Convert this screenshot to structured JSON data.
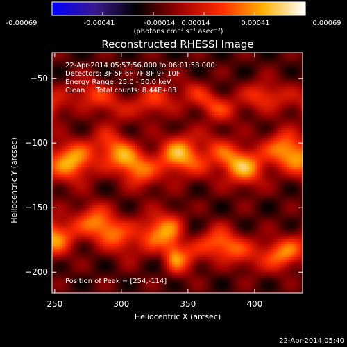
{
  "chart_data": {
    "type": "heatmap",
    "title": "Reconstructed RHESSI Image",
    "xlabel": "Heliocentric X (arcsec)",
    "ylabel": "Heliocentric Y (arcsec)",
    "xlim": [
      248,
      436
    ],
    "ylim": [
      -216,
      -30
    ],
    "x_ticks": [
      250,
      300,
      350,
      400
    ],
    "y_ticks": [
      -50,
      -100,
      -150,
      -200
    ],
    "colorbar": {
      "ticks": [
        "-0.00069",
        "-0.00041",
        "-0.00014",
        "0.00014",
        "0.00041",
        "0.00069"
      ],
      "unit_label": "(photons cm⁻² s⁻¹ asec⁻²)",
      "range": [
        -0.00069,
        0.00069
      ],
      "colormap": [
        "#0000ff",
        "#3a1a8c",
        "#000000",
        "#9a0000",
        "#ff2a00",
        "#ffb000",
        "#ffffff"
      ]
    },
    "annotations": [
      "22-Apr-2014 05:57:56.000 to 06:01:58.000",
      "Detectors: 3F 5F 6F 7F 8F 9F 10F",
      "Energy Range: 25.0 - 50.0 keV",
      "Clean     Total counts: 8.44E+03"
    ],
    "peak_label": "Position of Peak = [254,-114]",
    "peak_position": [
      254,
      -114
    ],
    "grid": false,
    "bands": [
      {
        "x": [
          248,
          436
        ],
        "y_center": -67,
        "y_halfwidth": 12,
        "peak_value": 0.00035
      },
      {
        "x": [
          248,
          436
        ],
        "y_center": -112,
        "y_halfwidth": 16,
        "peak_value": 0.0006
      },
      {
        "x": [
          248,
          340
        ],
        "y_center": -168,
        "y_halfwidth": 15,
        "peak_value": 0.00055
      },
      {
        "x": [
          340,
          436
        ],
        "y_center": -183,
        "y_halfwidth": 13,
        "peak_value": 0.0005
      }
    ]
  },
  "footer_timestamp": "22-Apr-2014 05:40"
}
